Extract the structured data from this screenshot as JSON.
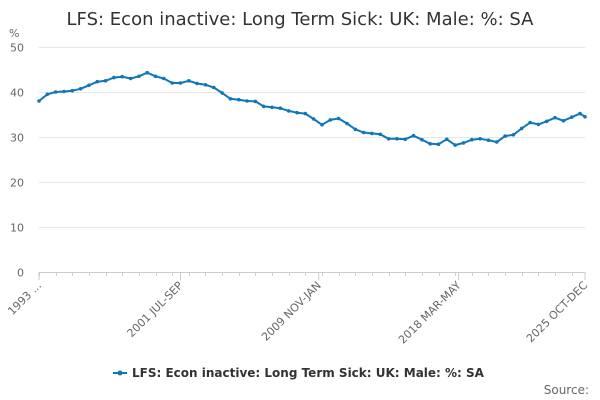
{
  "chart_data": {
    "type": "line",
    "title": "LFS: Econ inactive: Long Term Sick: UK: Male: %: SA",
    "ylabel": "%",
    "ylim": [
      0,
      50
    ],
    "yticks": [
      0,
      10,
      20,
      30,
      40,
      50
    ],
    "grid": true,
    "legend_position": "bottom",
    "x_tick_labels": [
      "1993 ...",
      "2001 JUL-SEP",
      "2009 NOV-JAN",
      "2018 MAR-MAY",
      "2025 OCT-DEC"
    ],
    "series": [
      {
        "name": "LFS: Econ inactive: Long Term Sick: UK: Male: %: SA",
        "color": "#0f77b8",
        "x": [
          1993.0,
          1993.5,
          1994.0,
          1994.5,
          1995.0,
          1995.5,
          1996.0,
          1996.5,
          1997.0,
          1997.5,
          1998.0,
          1998.5,
          1999.0,
          1999.5,
          2000.0,
          2000.5,
          2001.0,
          2001.5,
          2002.0,
          2002.5,
          2003.0,
          2003.5,
          2004.0,
          2004.5,
          2005.0,
          2005.5,
          2006.0,
          2006.5,
          2007.0,
          2007.5,
          2008.0,
          2008.5,
          2009.0,
          2009.5,
          2010.0,
          2010.5,
          2011.0,
          2011.5,
          2012.0,
          2012.5,
          2013.0,
          2013.5,
          2014.0,
          2014.5,
          2015.0,
          2015.5,
          2016.0,
          2016.5,
          2017.0,
          2017.5,
          2018.0,
          2018.5,
          2019.0,
          2019.5,
          2020.0,
          2020.5,
          2021.0,
          2021.5,
          2022.0,
          2022.5,
          2023.0,
          2023.5,
          2024.0,
          2024.5,
          2025.0,
          2025.5,
          2025.8
        ],
        "y": [
          38.0,
          39.5,
          40.0,
          40.1,
          40.3,
          40.7,
          41.5,
          42.3,
          42.5,
          43.2,
          43.4,
          43.0,
          43.5,
          44.3,
          43.5,
          43.0,
          42.0,
          42.0,
          42.5,
          41.9,
          41.6,
          41.0,
          39.8,
          38.5,
          38.3,
          38.0,
          37.9,
          36.8,
          36.6,
          36.4,
          35.8,
          35.4,
          35.2,
          34.0,
          32.7,
          33.8,
          34.1,
          33.0,
          31.7,
          31.0,
          30.8,
          30.6,
          29.6,
          29.6,
          29.5,
          30.3,
          29.4,
          28.5,
          28.4,
          29.5,
          28.2,
          28.7,
          29.4,
          29.6,
          29.3,
          28.9,
          30.2,
          30.5,
          31.9,
          33.2,
          32.8,
          33.5,
          34.3,
          33.6,
          34.4,
          35.2,
          34.5
        ]
      }
    ]
  },
  "legend": {
    "label": "LFS: Econ inactive: Long Term Sick: UK: Male: %: SA"
  },
  "footer": {
    "source": "Source:"
  }
}
